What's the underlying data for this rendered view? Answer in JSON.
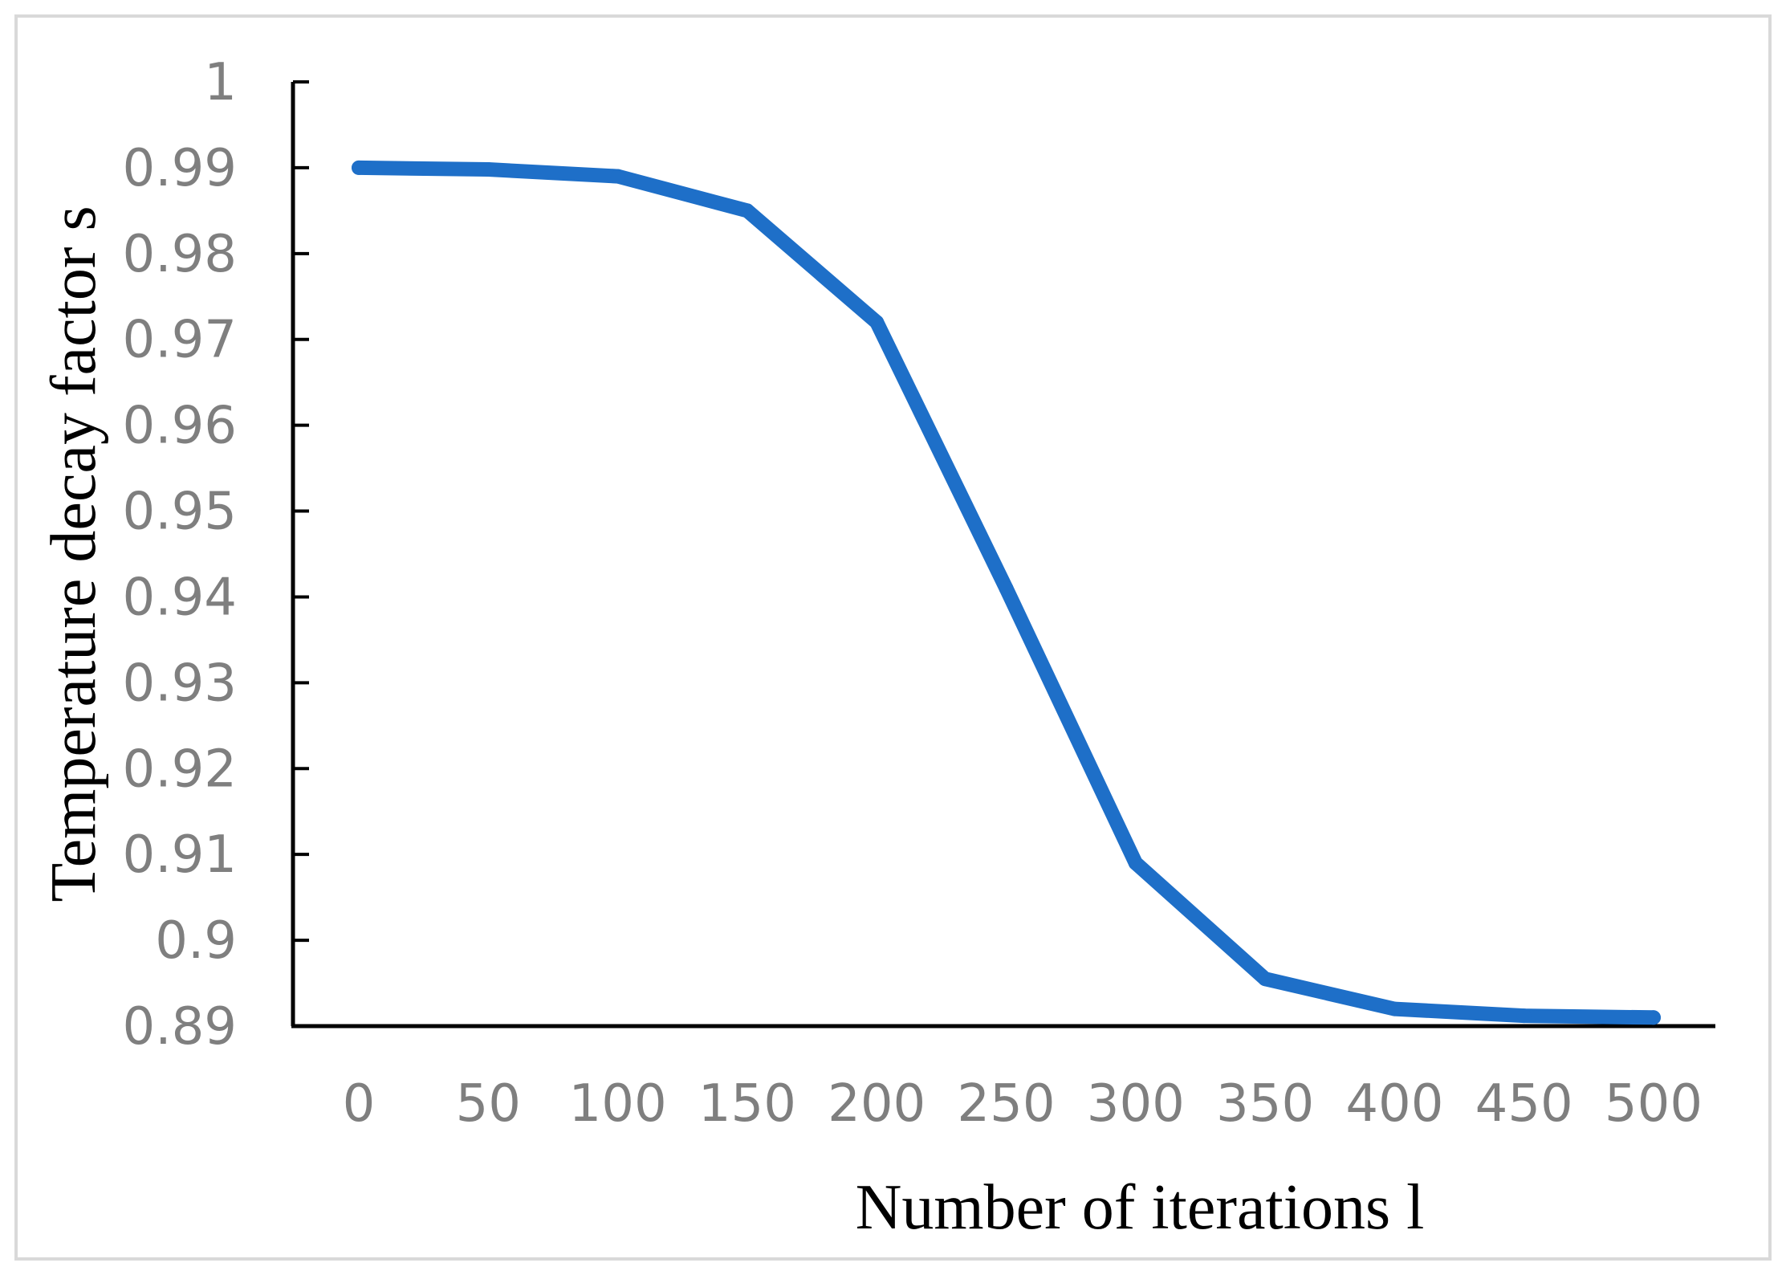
{
  "chart_data": {
    "type": "line",
    "title": "",
    "xlabel": "Number of iterations l",
    "ylabel": "Temperature decay factor s",
    "x": [
      0,
      50,
      100,
      150,
      200,
      250,
      300,
      350,
      400,
      450,
      500
    ],
    "series": [
      {
        "values": [
          0.99,
          0.9898,
          0.989,
          0.985,
          0.972,
          0.941,
          0.909,
          0.8955,
          0.892,
          0.8912,
          0.891
        ]
      }
    ],
    "xlim": [
      0,
      500
    ],
    "ylim": [
      0.89,
      1
    ],
    "x_ticks": [
      "0",
      "50",
      "100",
      "150",
      "200",
      "250",
      "300",
      "350",
      "400",
      "450",
      "500"
    ],
    "y_ticks": [
      "0.89",
      "0.9",
      "0.91",
      "0.92",
      "0.93",
      "0.94",
      "0.95",
      "0.96",
      "0.97",
      "0.98",
      "0.99",
      "1"
    ],
    "grid": false,
    "legend": "none",
    "colors": {
      "line": "#1e6fc8",
      "axis": "#000000",
      "tick_text": "#7f7f7f",
      "border": "#d9d9d9"
    }
  }
}
